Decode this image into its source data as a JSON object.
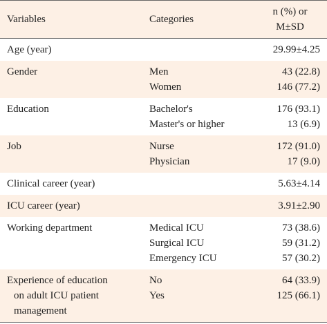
{
  "table": {
    "header": {
      "variable": "Variables",
      "category": "Categories",
      "value": [
        "n (%) or",
        "M±SD"
      ]
    },
    "rows": [
      {
        "variable": [
          "Age (year)"
        ],
        "items": [
          {
            "category": null,
            "value": "29.99±4.25"
          }
        ]
      },
      {
        "variable": [
          "Gender"
        ],
        "items": [
          {
            "category": "Men",
            "value": "43 (22.8)"
          },
          {
            "category": "Women",
            "value": "146 (77.2)"
          }
        ]
      },
      {
        "variable": [
          "Education"
        ],
        "items": [
          {
            "category": "Bachelor's",
            "value": "176 (93.1)"
          },
          {
            "category": "Master's or higher",
            "value": "13 (6.9)"
          }
        ]
      },
      {
        "variable": [
          "Job"
        ],
        "items": [
          {
            "category": "Nurse",
            "value": "172 (91.0)"
          },
          {
            "category": "Physician",
            "value": "17 (9.0)"
          }
        ]
      },
      {
        "variable": [
          "Clinical career (year)"
        ],
        "items": [
          {
            "category": null,
            "value": "5.63±4.14"
          }
        ]
      },
      {
        "variable": [
          "ICU career (year)"
        ],
        "items": [
          {
            "category": null,
            "value": "3.91±2.90"
          }
        ]
      },
      {
        "variable": [
          "Working department"
        ],
        "items": [
          {
            "category": "Medical ICU",
            "value": "73 (38.6)"
          },
          {
            "category": "Surgical ICU",
            "value": "59 (31.2)"
          },
          {
            "category": "Emergency ICU",
            "value": "57 (30.2)"
          }
        ]
      },
      {
        "variable": [
          "Experience of education",
          "on adult ICU patient",
          "management"
        ],
        "items": [
          {
            "category": "No",
            "value": "64 (33.9)"
          },
          {
            "category": "Yes",
            "value": "125 (66.1)"
          }
        ]
      }
    ]
  }
}
